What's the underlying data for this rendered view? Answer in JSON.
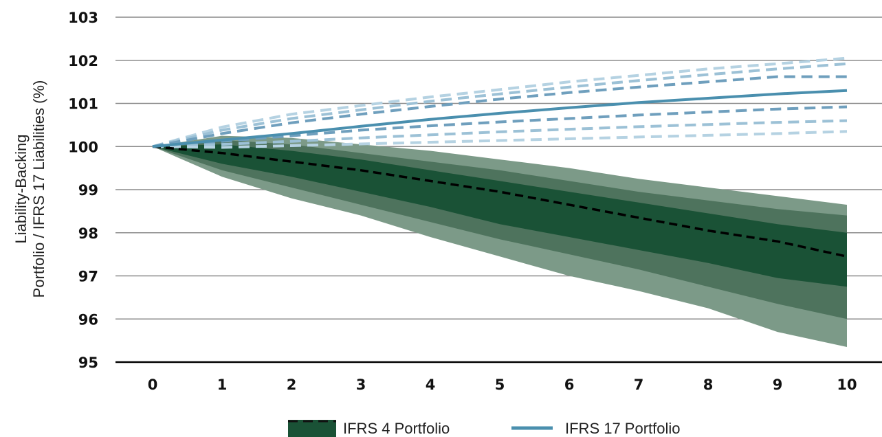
{
  "chart_data": {
    "type": "area",
    "title": "",
    "xlabel": "",
    "ylabel_lines": [
      "Liability-Backing",
      "Portfolio / IFRS 17 Liabilities (%)"
    ],
    "x": [
      0,
      1,
      2,
      3,
      4,
      5,
      6,
      7,
      8,
      9,
      10
    ],
    "xlim": [
      0,
      10
    ],
    "ylim": [
      95,
      103
    ],
    "yticks": [
      95,
      96,
      97,
      98,
      99,
      100,
      101,
      102,
      103
    ],
    "grid": true,
    "legend_position": "bottom-center",
    "legend": [
      {
        "label": "IFRS 4 Portfolio",
        "color": "#1a5236"
      },
      {
        "label": "IFRS 17 Portfolio",
        "color": "#4a8fae"
      }
    ],
    "ifrs4_bands": [
      {
        "level": "outer",
        "color": "#7c9a88",
        "upper": [
          100,
          100.25,
          100.2,
          100.05,
          99.9,
          99.7,
          99.5,
          99.25,
          99.05,
          98.85,
          98.65
        ],
        "lower": [
          100,
          99.3,
          98.8,
          98.4,
          97.9,
          97.45,
          97.0,
          96.65,
          96.25,
          95.7,
          95.35
        ]
      },
      {
        "level": "middle",
        "color": "#4e735d",
        "upper": [
          100,
          100.15,
          100.05,
          99.85,
          99.65,
          99.45,
          99.2,
          98.95,
          98.75,
          98.55,
          98.4
        ],
        "lower": [
          100,
          99.45,
          99.05,
          98.65,
          98.25,
          97.85,
          97.5,
          97.15,
          96.75,
          96.35,
          96.0
        ]
      },
      {
        "level": "inner",
        "color": "#1a5236",
        "upper": [
          100,
          100.05,
          99.9,
          99.7,
          99.45,
          99.2,
          98.95,
          98.7,
          98.45,
          98.2,
          98.0
        ],
        "lower": [
          100,
          99.6,
          99.3,
          98.95,
          98.6,
          98.2,
          97.9,
          97.6,
          97.3,
          96.95,
          96.75
        ]
      }
    ],
    "series": [
      {
        "name": "IFRS 4 Portfolio",
        "style": "dashed",
        "color": "#000000",
        "values": [
          100,
          99.85,
          99.65,
          99.45,
          99.2,
          98.95,
          98.65,
          98.35,
          98.05,
          97.8,
          97.45
        ]
      },
      {
        "name": "IFRS 17 Portfolio",
        "style": "solid",
        "color": "#4a8fae",
        "values": [
          100,
          100.15,
          100.3,
          100.47,
          100.63,
          100.77,
          100.9,
          101.02,
          101.12,
          101.22,
          101.3
        ]
      }
    ],
    "ifrs17_scenarios": [
      {
        "color": "#b5d2e2",
        "values": [
          100,
          100.45,
          100.75,
          100.95,
          101.15,
          101.32,
          101.5,
          101.65,
          101.8,
          101.92,
          102.05
        ]
      },
      {
        "color": "#9cc1d6",
        "values": [
          100,
          100.38,
          100.65,
          100.85,
          101.05,
          101.22,
          101.38,
          101.53,
          101.67,
          101.8,
          101.92
        ]
      },
      {
        "color": "#6f9fbd",
        "values": [
          100,
          100.3,
          100.55,
          100.75,
          100.93,
          101.1,
          101.25,
          101.38,
          101.5,
          101.62,
          101.62
        ]
      },
      {
        "color": "#6f9fbd",
        "values": [
          100,
          100.12,
          100.25,
          100.38,
          100.48,
          100.57,
          100.65,
          100.73,
          100.8,
          100.87,
          100.92
        ]
      },
      {
        "color": "#9cc1d6",
        "values": [
          100,
          100.05,
          100.12,
          100.2,
          100.27,
          100.34,
          100.4,
          100.46,
          100.51,
          100.56,
          100.6
        ]
      },
      {
        "color": "#b5d2e2",
        "values": [
          100,
          99.98,
          100.02,
          100.06,
          100.1,
          100.14,
          100.18,
          100.22,
          100.26,
          100.3,
          100.35
        ]
      }
    ]
  }
}
